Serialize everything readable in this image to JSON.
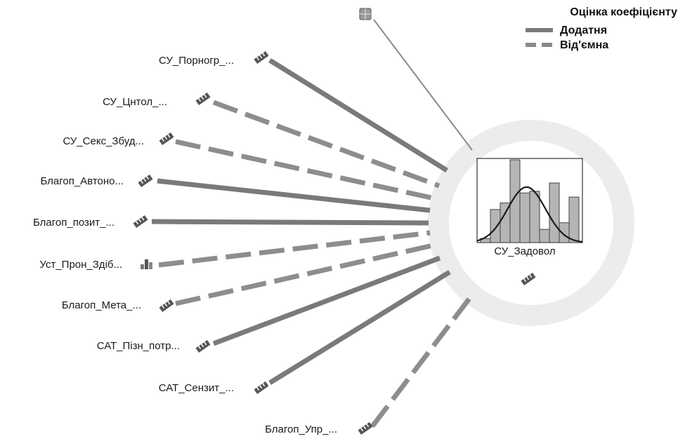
{
  "legend": {
    "title": "Оцінка коефіцієнту",
    "positive": "Додатня",
    "negative": "Від'ємна"
  },
  "target": {
    "label": "СУ_Задовол",
    "histogram_bars": [
      0.05,
      0.4,
      0.48,
      1.0,
      0.6,
      0.62,
      0.16,
      0.72,
      0.24,
      0.55
    ],
    "normal_curve": true,
    "icon": "ruler-icon"
  },
  "predictors": [
    {
      "label": "СУ_Порногр_...",
      "sign": "positive",
      "icon": "ruler-icon"
    },
    {
      "label": "СУ_Цнтол_...",
      "sign": "negative",
      "icon": "ruler-icon"
    },
    {
      "label": "СУ_Секс_Збуд...",
      "sign": "negative",
      "icon": "ruler-icon"
    },
    {
      "label": "Благоп_Автоно...",
      "sign": "positive",
      "icon": "ruler-icon"
    },
    {
      "label": "Благоп_позит_...",
      "sign": "positive",
      "icon": "ruler-icon"
    },
    {
      "label": "Уст_Прон_Здіб...",
      "sign": "negative",
      "icon": "bar-chart-icon"
    },
    {
      "label": "Благоп_Мета_...",
      "sign": "negative",
      "icon": "ruler-icon"
    },
    {
      "label": "САТ_Пізн_потр...",
      "sign": "positive",
      "icon": "ruler-icon"
    },
    {
      "label": "САТ_Сензит_...",
      "sign": "positive",
      "icon": "ruler-icon"
    },
    {
      "label": "Благоп_Упр_...",
      "sign": "negative",
      "icon": "ruler-icon"
    }
  ],
  "intercept": {
    "icon": "cube-icon"
  },
  "colors": {
    "line": "#7a7a7a",
    "halo": "#ececec",
    "icon": "#555555",
    "curve": "#1a1a1a",
    "bar": "#b5b5b5"
  }
}
